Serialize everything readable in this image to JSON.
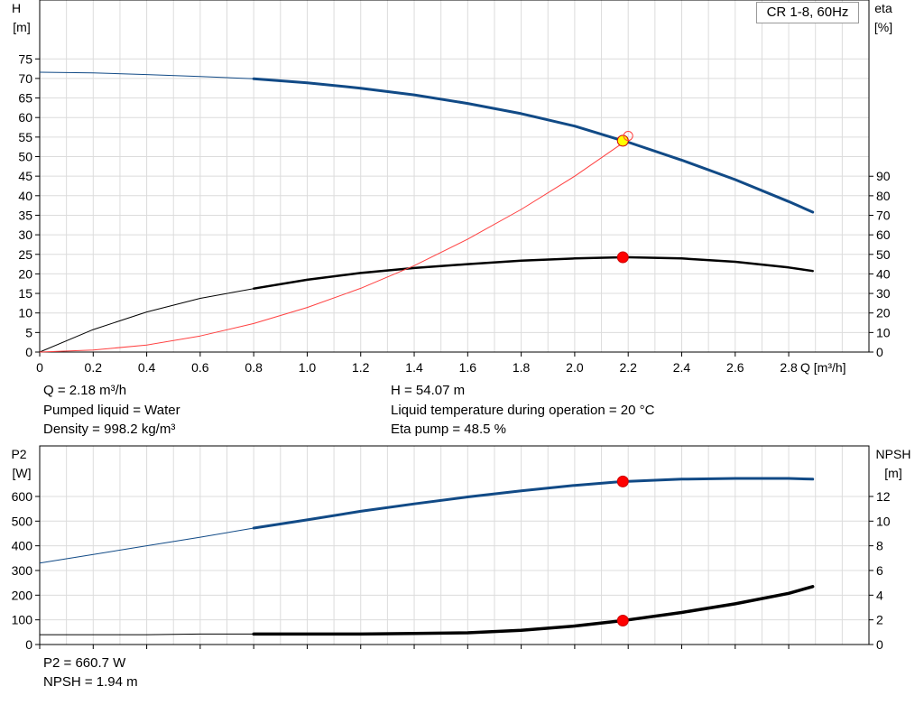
{
  "chart_data": [
    {
      "type": "line",
      "legend": "CR 1-8, 60Hz",
      "xlabel": "Q [m³/h]",
      "ylabel": "H",
      "ylabel_unit": "[m]",
      "y2label": "eta",
      "y2label_unit": "[%]",
      "xlim": [
        0,
        3.1
      ],
      "ylim": [
        0,
        80
      ],
      "x_ticks": [
        "0",
        "0.2",
        "0.4",
        "0.6",
        "0.8",
        "1.0",
        "1.2",
        "1.4",
        "1.6",
        "1.8",
        "2.0",
        "2.2",
        "2.4",
        "2.6",
        "2.8"
      ],
      "y_ticks": [
        "0",
        "5",
        "10",
        "15",
        "20",
        "25",
        "30",
        "35",
        "40",
        "45",
        "50",
        "55",
        "60",
        "65",
        "70",
        "75"
      ],
      "y2_ticks": [
        "0",
        "10",
        "20",
        "30",
        "40",
        "50",
        "60",
        "70",
        "80",
        "90"
      ],
      "grid": true,
      "series": [
        {
          "color": "#114a86",
          "axis": "left",
          "thin_until_x": 0.8,
          "x": [
            0,
            0.2,
            0.4,
            0.6,
            0.8,
            1.0,
            1.2,
            1.4,
            1.6,
            1.8,
            2.0,
            2.18,
            2.2,
            2.4,
            2.6,
            2.8,
            2.89
          ],
          "y": [
            71.6,
            71.4,
            71.0,
            70.5,
            69.9,
            68.9,
            67.5,
            65.8,
            63.6,
            61.0,
            57.8,
            54.07,
            53.7,
            49.1,
            44.1,
            38.5,
            35.8
          ]
        },
        {
          "color": "#000000",
          "axis": "right",
          "thin_until_x": 0.8,
          "x": [
            0,
            0.2,
            0.4,
            0.6,
            0.8,
            1.0,
            1.2,
            1.4,
            1.6,
            1.8,
            2.0,
            2.18,
            2.2,
            2.4,
            2.6,
            2.8,
            2.89
          ],
          "y": [
            0,
            11.5,
            20.5,
            27.5,
            32.5,
            37.0,
            40.5,
            43.0,
            45.0,
            46.8,
            47.9,
            48.5,
            48.5,
            47.9,
            46.2,
            43.3,
            41.5
          ]
        },
        {
          "color": "#ff4040",
          "axis": "left",
          "thin_until_x": 2.2,
          "x": [
            0,
            0.2,
            0.4,
            0.6,
            0.8,
            1.0,
            1.2,
            1.4,
            1.6,
            1.8,
            2.0,
            2.18,
            2.2
          ],
          "y": [
            0,
            0.5,
            1.8,
            4.1,
            7.3,
            11.4,
            16.3,
            22.1,
            28.9,
            36.5,
            45.0,
            53.5,
            54.5
          ]
        }
      ],
      "markers": [
        {
          "x": 2.18,
          "y": 54.07,
          "axis": "left",
          "fill": "#ffff00",
          "stroke": "#cc0000"
        },
        {
          "x": 2.18,
          "y": 48.5,
          "axis": "right",
          "fill": "#ff0000",
          "stroke": "#cc0000"
        },
        {
          "x": 2.2,
          "y": 55.3,
          "axis": "left",
          "fill": "none",
          "stroke": "#ff4040"
        }
      ]
    },
    {
      "type": "line",
      "ylabel": "P2",
      "ylabel_unit": "[W]",
      "y2label": "NPSH",
      "y2label_unit": "[m]",
      "xlim": [
        0,
        3.1
      ],
      "ylim": [
        0,
        700
      ],
      "y2lim": [
        0,
        14
      ],
      "y_ticks": [
        "0",
        "100",
        "200",
        "300",
        "400",
        "500",
        "600"
      ],
      "y2_ticks": [
        "0",
        "2",
        "4",
        "6",
        "8",
        "10",
        "12"
      ],
      "grid": true,
      "series": [
        {
          "color": "#114a86",
          "axis": "left",
          "thin_until_x": 0.8,
          "x": [
            0,
            0.2,
            0.4,
            0.6,
            0.8,
            1.0,
            1.2,
            1.4,
            1.6,
            1.8,
            2.0,
            2.18,
            2.2,
            2.4,
            2.6,
            2.8,
            2.89
          ],
          "y": [
            330,
            365,
            400,
            435,
            472,
            505,
            540,
            570,
            598,
            623,
            645,
            660.7,
            661,
            670,
            673,
            673,
            670
          ]
        },
        {
          "color": "#000000",
          "axis": "right",
          "thin_until_x": 0.8,
          "x": [
            0,
            0.2,
            0.4,
            0.6,
            0.8,
            1.0,
            1.2,
            1.4,
            1.6,
            1.8,
            2.0,
            2.18,
            2.2,
            2.4,
            2.6,
            2.8,
            2.89
          ],
          "y": [
            0.8,
            0.8,
            0.8,
            0.85,
            0.85,
            0.85,
            0.85,
            0.9,
            0.95,
            1.15,
            1.5,
            1.94,
            2.0,
            2.6,
            3.3,
            4.15,
            4.7
          ]
        }
      ],
      "markers": [
        {
          "x": 2.18,
          "y": 660.7,
          "axis": "left",
          "fill": "#ff0000",
          "stroke": "#cc0000"
        },
        {
          "x": 2.18,
          "y": 1.94,
          "axis": "right",
          "fill": "#ff0000",
          "stroke": "#cc0000"
        }
      ]
    }
  ],
  "info": {
    "q": "Q = 2.18 m³/h",
    "pumped_liquid": "Pumped liquid = Water",
    "density": "Density = 998.2 kg/m³",
    "h": "H = 54.07 m",
    "liquid_temp": "Liquid temperature during operation = 20 °C",
    "eta_pump": "Eta pump = 48.5 %",
    "p2": "P2 = 660.7 W",
    "npsh": "NPSH = 1.94 m"
  }
}
